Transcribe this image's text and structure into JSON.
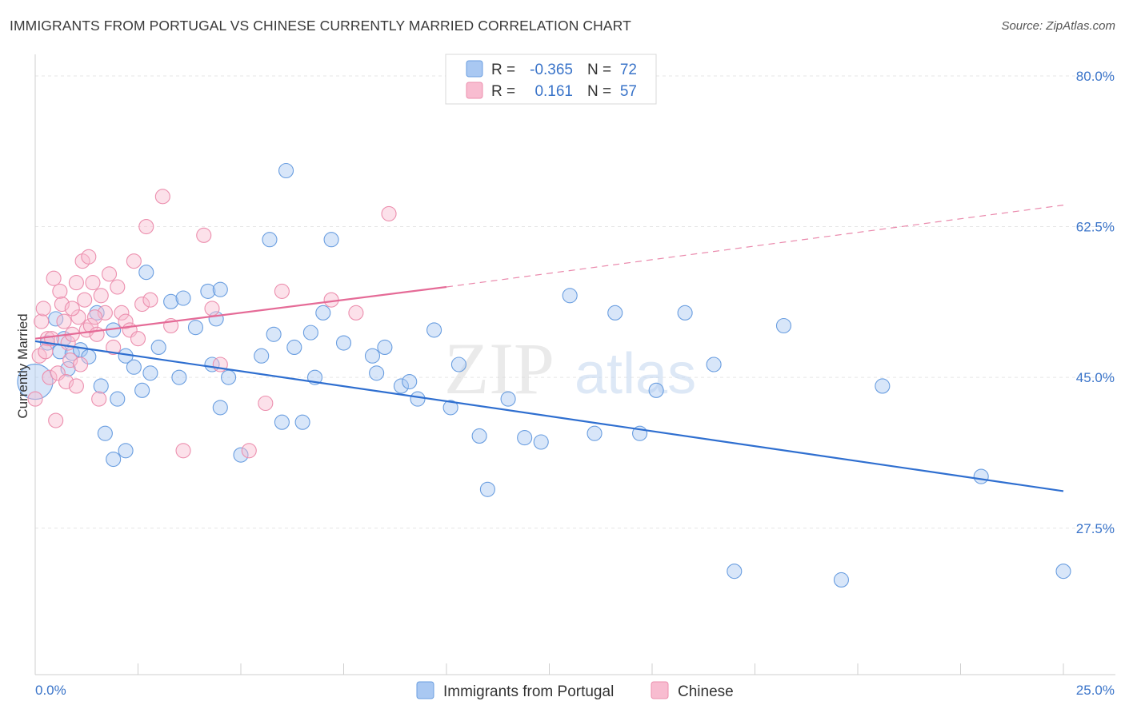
{
  "title": "IMMIGRANTS FROM PORTUGAL VS CHINESE CURRENTLY MARRIED CORRELATION CHART",
  "source": "Source: ZipAtlas.com",
  "watermark": {
    "zip": "ZIP",
    "atlas": "atlas"
  },
  "legend": {
    "rows": [
      {
        "r_label": "R =",
        "r_value": "-0.365",
        "n_label": "N =",
        "n_value": "72",
        "color": "#a9c8f2",
        "stroke": "#6a9ee0"
      },
      {
        "r_label": "R =",
        "r_value": "0.161",
        "n_label": "N =",
        "n_value": "57",
        "color": "#f8bcd0",
        "stroke": "#ec8fae"
      }
    ]
  },
  "chart_data": {
    "type": "scatter",
    "title": "IMMIGRANTS FROM PORTUGAL VS CHINESE CURRENTLY MARRIED CORRELATION CHART",
    "xlabel": "",
    "ylabel": "Currently Married",
    "xlim": [
      0,
      25
    ],
    "ylim": [
      10.5,
      82.5
    ],
    "x_tick_labels": [
      "0.0%",
      "25.0%"
    ],
    "y_ticks": [
      27.5,
      45.0,
      62.5,
      80.0
    ],
    "y_tick_labels": [
      "27.5%",
      "45.0%",
      "62.5%",
      "80.0%"
    ],
    "grid": true,
    "legend_position": "top-center",
    "series": [
      {
        "name": "Immigrants from Portugal",
        "color": "#a9c8f2",
        "stroke": "#6a9ee0",
        "trend": {
          "x": [
            0,
            25
          ],
          "y": [
            49.2,
            31.8
          ],
          "color": "#2f6fd0"
        },
        "points": [
          [
            0.0,
            44.5
          ],
          [
            0.5,
            51.8
          ],
          [
            0.3,
            49.0
          ],
          [
            0.6,
            48.0
          ],
          [
            0.9,
            47.8
          ],
          [
            0.7,
            49.5
          ],
          [
            0.8,
            46.0
          ],
          [
            1.1,
            48.2
          ],
          [
            1.3,
            47.4
          ],
          [
            1.5,
            52.5
          ],
          [
            1.9,
            50.5
          ],
          [
            2.2,
            47.5
          ],
          [
            2.4,
            46.2
          ],
          [
            1.6,
            44.0
          ],
          [
            2.0,
            42.5
          ],
          [
            2.6,
            43.5
          ],
          [
            1.7,
            38.5
          ],
          [
            1.9,
            35.5
          ],
          [
            2.7,
            57.2
          ],
          [
            3.3,
            53.8
          ],
          [
            3.6,
            54.2
          ],
          [
            3.0,
            48.5
          ],
          [
            2.8,
            45.5
          ],
          [
            3.5,
            45.0
          ],
          [
            4.2,
            55.0
          ],
          [
            4.5,
            55.2
          ],
          [
            3.9,
            50.8
          ],
          [
            4.4,
            51.8
          ],
          [
            4.3,
            46.5
          ],
          [
            4.7,
            45.0
          ],
          [
            5.5,
            47.5
          ],
          [
            5.8,
            50.0
          ],
          [
            5.7,
            61.0
          ],
          [
            6.1,
            69.0
          ],
          [
            6.3,
            48.5
          ],
          [
            6.0,
            39.8
          ],
          [
            6.5,
            39.8
          ],
          [
            6.7,
            50.2
          ],
          [
            6.8,
            45.0
          ],
          [
            7.0,
            52.5
          ],
          [
            7.2,
            61.0
          ],
          [
            7.5,
            49.0
          ],
          [
            8.2,
            47.5
          ],
          [
            8.5,
            48.5
          ],
          [
            8.3,
            45.5
          ],
          [
            8.9,
            44.0
          ],
          [
            9.1,
            44.5
          ],
          [
            9.3,
            42.5
          ],
          [
            9.7,
            50.5
          ],
          [
            10.1,
            41.5
          ],
          [
            10.3,
            46.5
          ],
          [
            10.8,
            38.2
          ],
          [
            11.0,
            32.0
          ],
          [
            11.5,
            42.5
          ],
          [
            11.9,
            38.0
          ],
          [
            12.3,
            37.5
          ],
          [
            13.0,
            54.5
          ],
          [
            13.6,
            38.5
          ],
          [
            14.1,
            52.5
          ],
          [
            14.7,
            38.5
          ],
          [
            15.1,
            43.5
          ],
          [
            15.8,
            52.5
          ],
          [
            16.5,
            46.5
          ],
          [
            17.0,
            22.5
          ],
          [
            18.2,
            51.0
          ],
          [
            19.6,
            21.5
          ],
          [
            20.6,
            44.0
          ],
          [
            23.0,
            33.5
          ],
          [
            25.0,
            22.5
          ],
          [
            4.5,
            41.5
          ],
          [
            5.0,
            36.0
          ],
          [
            2.2,
            36.5
          ]
        ]
      },
      {
        "name": "Chinese",
        "color": "#f8bcd0",
        "stroke": "#ec8fae",
        "trend": {
          "x": [
            0,
            10
          ],
          "y": [
            49.5,
            55.5
          ],
          "color": "#e56b97",
          "dashed_to": [
            25,
            65.0
          ]
        },
        "points": [
          [
            0.0,
            42.5
          ],
          [
            0.1,
            47.5
          ],
          [
            0.15,
            51.5
          ],
          [
            0.3,
            49.5
          ],
          [
            0.35,
            45.0
          ],
          [
            0.2,
            53.0
          ],
          [
            0.4,
            49.5
          ],
          [
            0.45,
            56.5
          ],
          [
            0.5,
            40.0
          ],
          [
            0.6,
            55.0
          ],
          [
            0.7,
            51.5
          ],
          [
            0.65,
            53.5
          ],
          [
            0.8,
            49.0
          ],
          [
            0.85,
            47.0
          ],
          [
            0.9,
            50.0
          ],
          [
            1.0,
            56.0
          ],
          [
            1.05,
            52.0
          ],
          [
            1.1,
            46.5
          ],
          [
            1.15,
            58.5
          ],
          [
            1.2,
            54.0
          ],
          [
            1.25,
            50.5
          ],
          [
            1.3,
            59.0
          ],
          [
            1.35,
            51.0
          ],
          [
            1.4,
            56.0
          ],
          [
            1.5,
            50.0
          ],
          [
            1.55,
            42.5
          ],
          [
            1.6,
            54.5
          ],
          [
            1.7,
            52.5
          ],
          [
            1.8,
            57.0
          ],
          [
            1.9,
            48.5
          ],
          [
            2.0,
            55.5
          ],
          [
            2.1,
            52.5
          ],
          [
            2.2,
            51.5
          ],
          [
            2.3,
            50.5
          ],
          [
            2.4,
            58.5
          ],
          [
            2.5,
            49.5
          ],
          [
            2.6,
            53.5
          ],
          [
            2.7,
            62.5
          ],
          [
            2.8,
            54.0
          ],
          [
            3.1,
            66.0
          ],
          [
            3.3,
            51.0
          ],
          [
            3.6,
            36.5
          ],
          [
            4.1,
            61.5
          ],
          [
            4.3,
            53.0
          ],
          [
            4.5,
            46.5
          ],
          [
            5.2,
            36.5
          ],
          [
            5.6,
            42.0
          ],
          [
            6.0,
            55.0
          ],
          [
            7.2,
            54.0
          ],
          [
            7.8,
            52.5
          ],
          [
            8.6,
            64.0
          ],
          [
            0.55,
            45.5
          ],
          [
            0.75,
            44.5
          ],
          [
            1.45,
            52.0
          ],
          [
            0.25,
            48.0
          ],
          [
            1.0,
            44.0
          ],
          [
            0.9,
            53.0
          ]
        ]
      }
    ]
  },
  "bottom_legend": [
    {
      "label": "Immigrants from Portugal",
      "color": "#a9c8f2",
      "stroke": "#6a9ee0"
    },
    {
      "label": "Chinese",
      "color": "#f8bcd0",
      "stroke": "#ec8fae"
    }
  ]
}
